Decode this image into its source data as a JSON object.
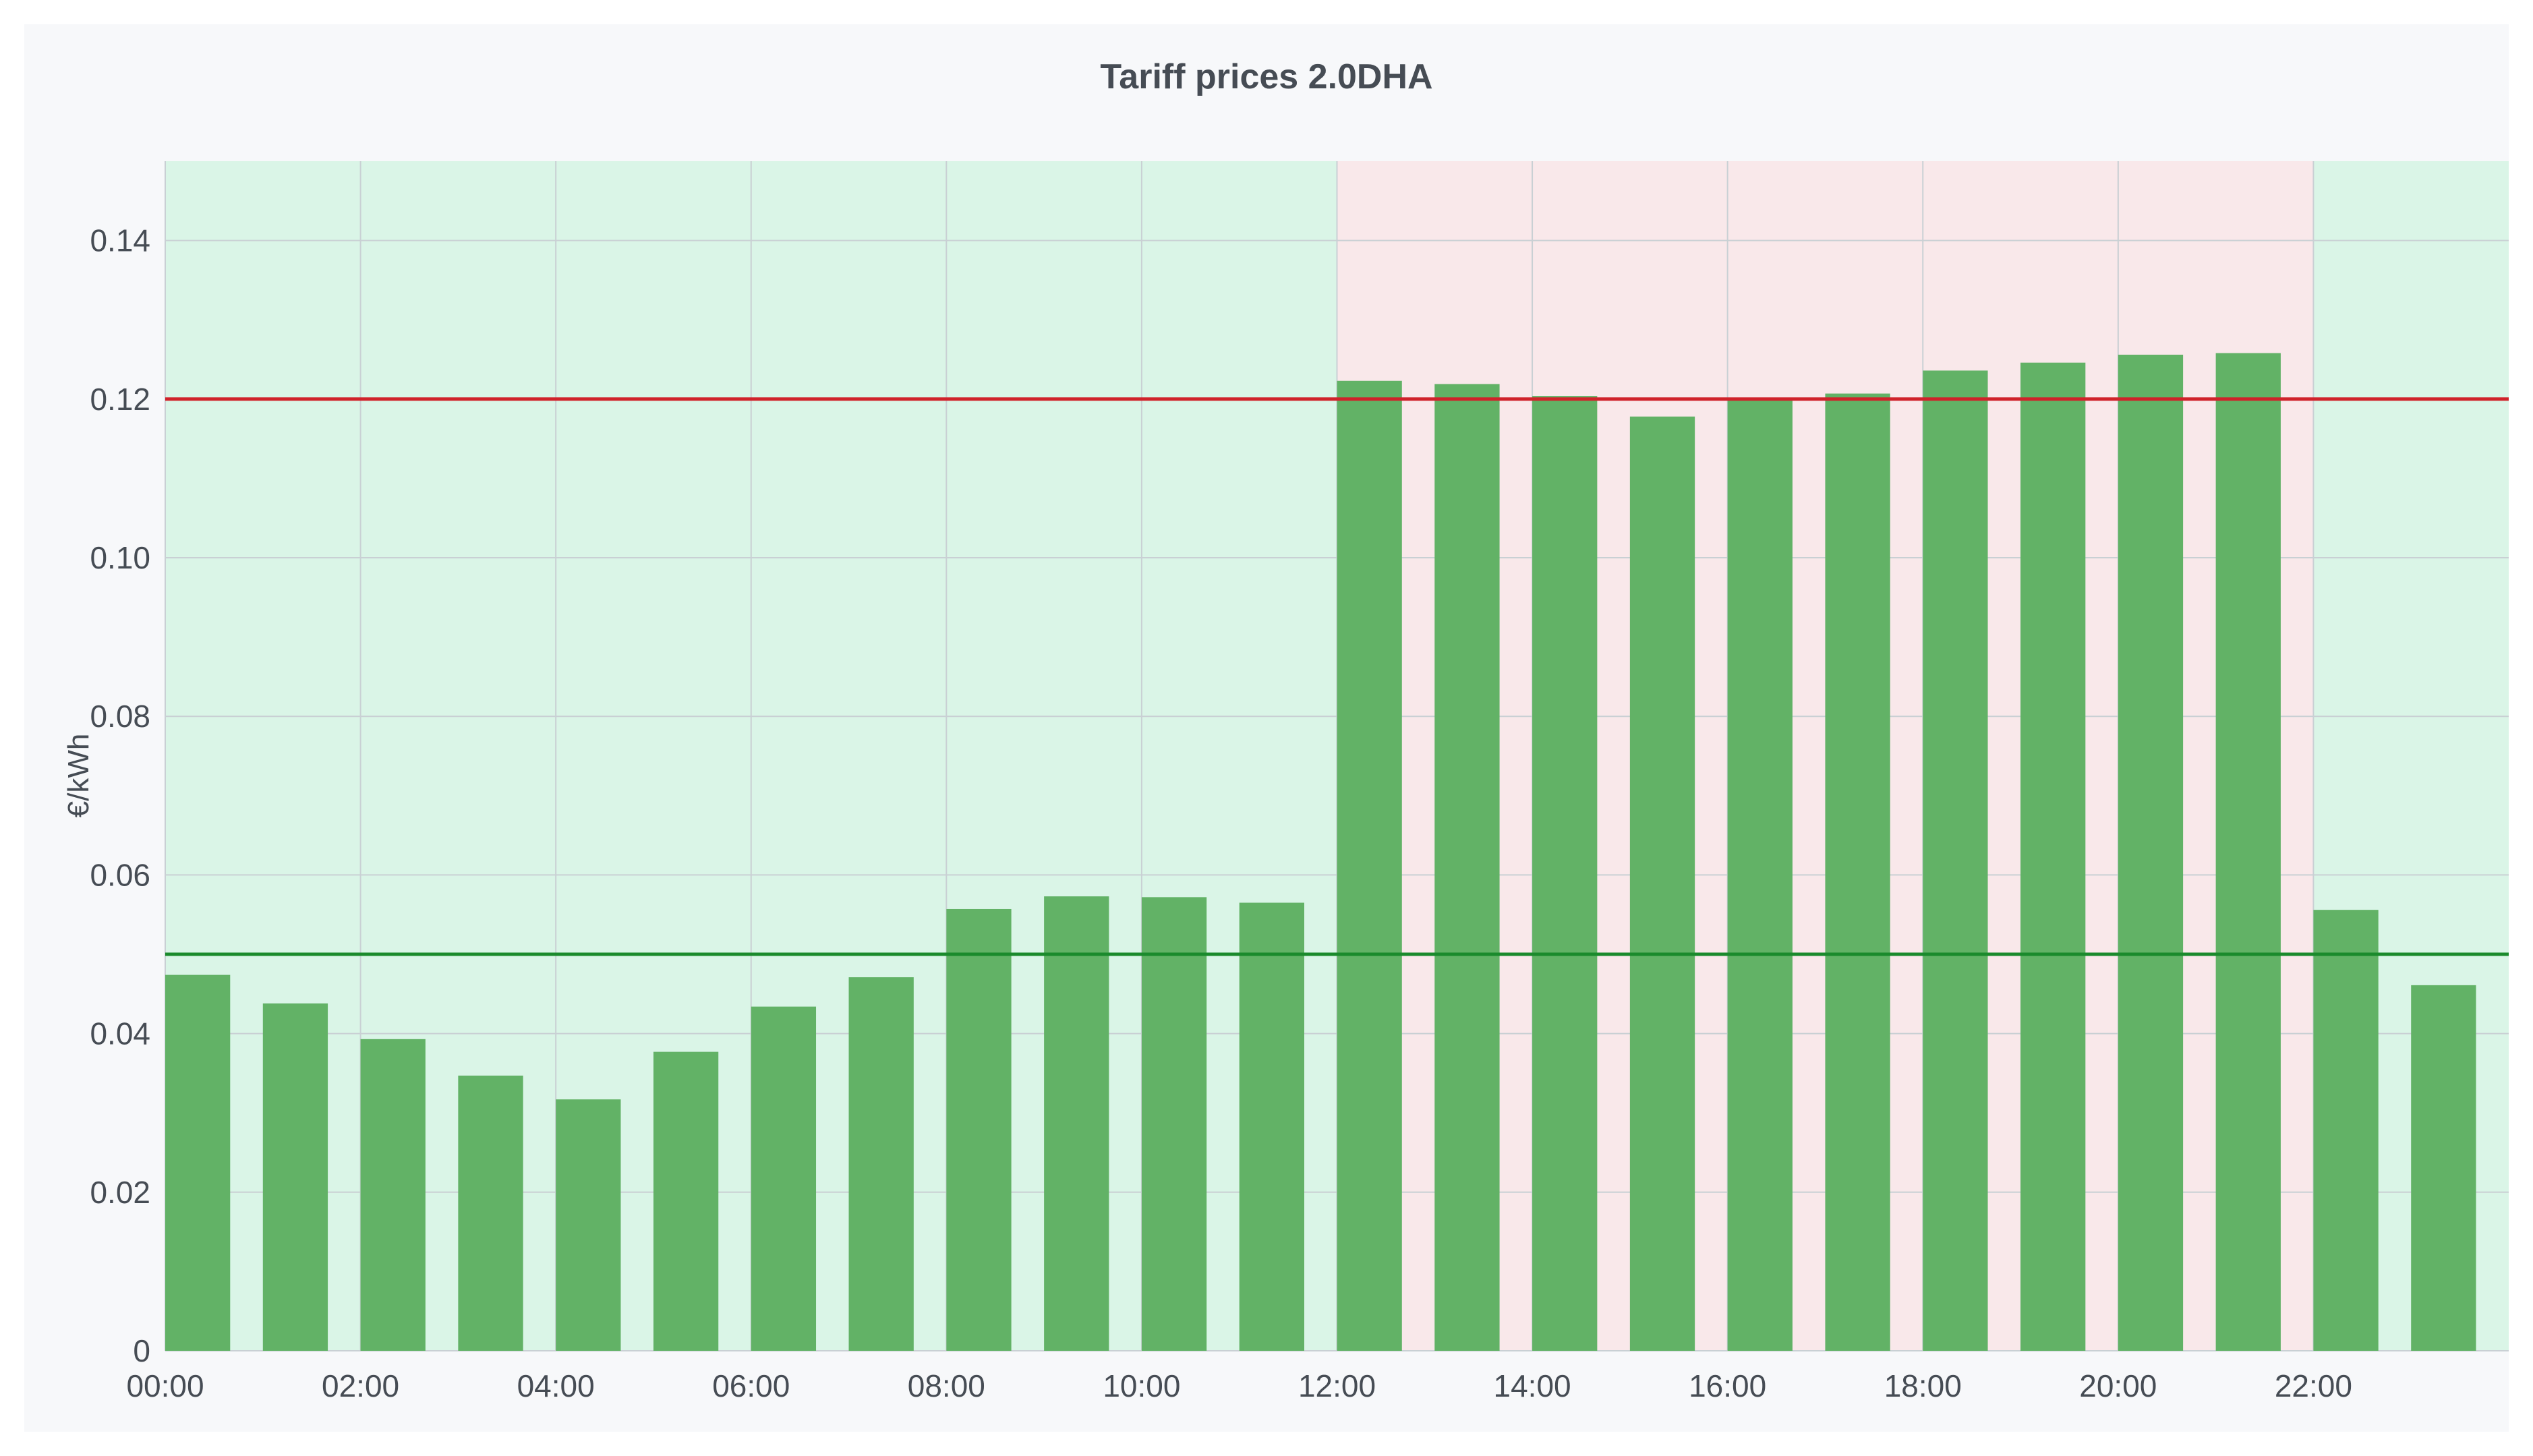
{
  "chart_data": {
    "type": "bar",
    "title": "Tariff prices 2.0DHA",
    "xlabel": "",
    "ylabel": "€/kWh",
    "ylim": [
      0,
      0.15
    ],
    "grid": true,
    "hours": [
      0,
      1,
      2,
      3,
      4,
      5,
      6,
      7,
      8,
      9,
      10,
      11,
      12,
      13,
      14,
      15,
      16,
      17,
      18,
      19,
      20,
      21,
      22,
      23
    ],
    "x_tick_labels": [
      "00:00",
      "02:00",
      "04:00",
      "06:00",
      "08:00",
      "10:00",
      "12:00",
      "14:00",
      "16:00",
      "18:00",
      "20:00",
      "22:00"
    ],
    "y_ticks": [
      0,
      0.02,
      0.04,
      0.06,
      0.08,
      0.1,
      0.12,
      0.14
    ],
    "y_tick_labels": [
      "0",
      "0.02",
      "0.04",
      "0.06",
      "0.08",
      "0.10",
      "0.12",
      "0.14"
    ],
    "values": [
      0.0474,
      0.0438,
      0.0393,
      0.0347,
      0.0317,
      0.0377,
      0.0434,
      0.0471,
      0.0557,
      0.0573,
      0.0572,
      0.0565,
      0.1223,
      0.1219,
      0.1204,
      0.1178,
      0.12,
      0.1207,
      0.1236,
      0.1246,
      0.1256,
      0.1258,
      0.0556,
      0.0461
    ],
    "bar_color": "#62b266",
    "threshold_lines": [
      {
        "value": 0.12,
        "color": "#d0222a"
      },
      {
        "value": 0.05,
        "color": "#1a8a2c"
      }
    ],
    "background_bands": [
      {
        "from_hour": 0,
        "to_hour": 12,
        "color": "#daf5e7"
      },
      {
        "from_hour": 12,
        "to_hour": 22,
        "color": "#f9e8ea"
      },
      {
        "from_hour": 22,
        "to_hour": 24,
        "color": "#daf5e7"
      }
    ]
  }
}
